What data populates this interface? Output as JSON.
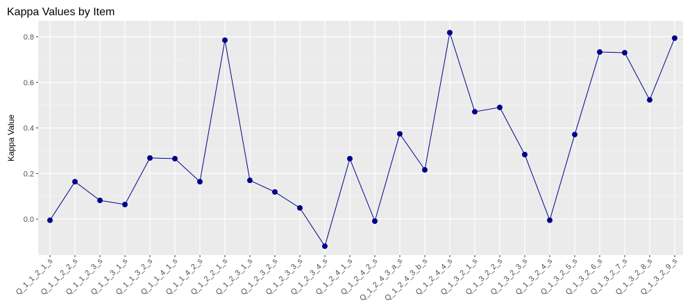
{
  "chart_data": {
    "type": "line",
    "title": "Kappa Values by Item",
    "y_label": "Kappa Value",
    "categories": [
      "Q_1_1_2_1_s",
      "Q_1_1_2_2_s",
      "Q_1_1_2_3_s",
      "Q_1_1_3_1_s",
      "Q_1_1_3_2_s",
      "Q_1_1_4_1_s",
      "Q_1_1_4_2_s",
      "Q_1_2_2_1_s",
      "Q_1_2_3_1_s",
      "Q_1_2_3_2_s",
      "Q_1_2_3_3_s",
      "Q_1_2_3_4_s",
      "Q_1_2_4_1_s",
      "Q_1_2_4_2_s",
      "Q_1_2_4_3_a_s",
      "Q_1_2_4_3_b_s",
      "Q_1_2_4_4_s",
      "Q_1_3_2_1_s",
      "Q_1_3_2_2_s",
      "Q_1_3_2_3_s",
      "Q_1_3_2_4_s",
      "Q_1_3_2_5_s",
      "Q_1_3_2_6_s",
      "Q_1_3_2_7_s",
      "Q_1_3_2_8_s",
      "Q_1_3_2_9_s"
    ],
    "values": [
      -0.005,
      0.164,
      0.082,
      0.064,
      0.268,
      0.265,
      0.164,
      0.785,
      0.17,
      0.119,
      0.049,
      -0.119,
      0.265,
      -0.009,
      0.374,
      0.216,
      0.818,
      0.471,
      0.49,
      0.283,
      -0.005,
      0.371,
      0.733,
      0.73,
      0.523,
      0.794
    ],
    "color": "#00008b",
    "ylim": [
      -0.158,
      0.87
    ],
    "yticks": [
      {
        "value": 0,
        "label": "0.0"
      },
      0.2,
      0.4,
      0.6,
      0.8
    ],
    "grid": true
  }
}
